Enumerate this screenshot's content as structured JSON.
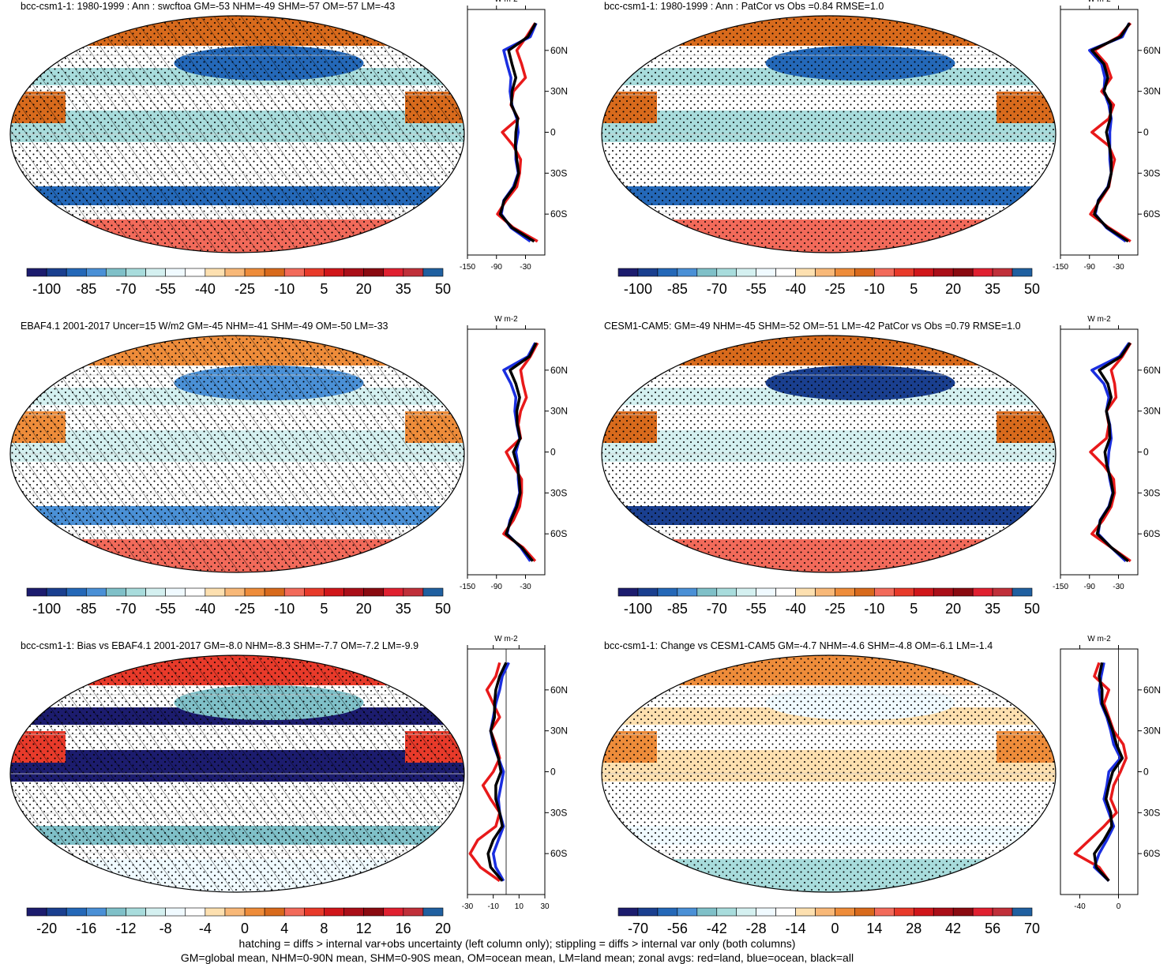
{
  "figure": {
    "footer_line1": "hatching = diffs > internal var+obs uncertainty (left column only); stippling = diffs > internal var only (both columns)",
    "footer_line2": "GM=global mean, NHM=0-90N mean, SHM=0-90S mean, OM=ocean mean, LM=land mean; zonal avgs: red=land, blue=ocean, black=all"
  },
  "colors": {
    "land": "#e8191a",
    "ocean": "#1a2ee0",
    "all": "#000000",
    "scale": [
      "#1c1c6e",
      "#1a3f8f",
      "#2468b8",
      "#4a90d6",
      "#7fc0c8",
      "#a8dcdc",
      "#d4f0f0",
      "#f0faff",
      "#ffffff",
      "#fde0b0",
      "#f8b878",
      "#ee8c3a",
      "#d86a1c",
      "#f26a5a",
      "#e83a2a",
      "#d0161a",
      "#aa0e18",
      "#8a0a10",
      "#e02030",
      "#c0303a",
      "#2060a0"
    ]
  },
  "chart_data": [
    {
      "type": "map",
      "id": "p1",
      "title": "bcc-csm1-1: 1980-1999 : Ann : swcftoa GM=-53 NHM=-49 SHM=-57 OM=-57 LM=-43",
      "colorbar_labels": [
        "-100",
        "-85",
        "-70",
        "-55",
        "-40",
        "-25",
        "-10",
        "5",
        "20",
        "35",
        "50"
      ],
      "zonal": {
        "unit_label": "W m-2",
        "xticks": [
          "-150",
          "-90",
          "-30"
        ],
        "xlim": [
          -150,
          10
        ],
        "yticks": [
          "60N",
          "30N",
          "0",
          "30S",
          "60S"
        ],
        "lats": [
          80,
          70,
          60,
          50,
          40,
          30,
          20,
          10,
          0,
          -10,
          -20,
          -30,
          -40,
          -50,
          -60,
          -70,
          -80
        ],
        "land": [
          -10,
          -28,
          -48,
          -38,
          -30,
          -55,
          -60,
          -45,
          -78,
          -55,
          -40,
          -42,
          -48,
          -70,
          -88,
          -55,
          -5
        ],
        "ocean": [
          -8,
          -20,
          -75,
          -68,
          -60,
          -62,
          -58,
          -48,
          -45,
          -50,
          -50,
          -45,
          -55,
          -75,
          -80,
          -60,
          -20
        ],
        "all": [
          -9,
          -25,
          -65,
          -58,
          -50,
          -58,
          -59,
          -46,
          -50,
          -51,
          -48,
          -44,
          -53,
          -74,
          -82,
          -58,
          -12
        ]
      }
    },
    {
      "type": "map",
      "id": "p2",
      "title": "bcc-csm1-1: 1980-1999 : Ann : PatCor vs Obs =0.84 RMSE=1.0",
      "colorbar_labels": [
        "-100",
        "-85",
        "-70",
        "-55",
        "-40",
        "-25",
        "-10",
        "5",
        "20",
        "35",
        "50"
      ],
      "zonal": {
        "unit_label": "W m-2",
        "xticks": [
          "-150",
          "-90",
          "-30"
        ],
        "xlim": [
          -150,
          10
        ],
        "yticks": [
          "60N",
          "30N",
          "0",
          "30S",
          "60S"
        ],
        "lats": [
          80,
          70,
          60,
          50,
          40,
          30,
          20,
          10,
          0,
          -10,
          -20,
          -30,
          -40,
          -50,
          -60,
          -70,
          -80
        ],
        "land": [
          -5,
          -30,
          -80,
          -55,
          -45,
          -65,
          -40,
          -50,
          -85,
          -50,
          -38,
          -45,
          -50,
          -68,
          -88,
          -50,
          -5
        ],
        "ocean": [
          -8,
          -22,
          -90,
          -65,
          -58,
          -60,
          -50,
          -45,
          -48,
          -48,
          -48,
          -45,
          -52,
          -72,
          -78,
          -55,
          -15
        ],
        "all": [
          -7,
          -26,
          -85,
          -60,
          -52,
          -60,
          -46,
          -47,
          -55,
          -49,
          -45,
          -45,
          -51,
          -71,
          -80,
          -53,
          -10
        ]
      }
    },
    {
      "type": "map",
      "id": "p3",
      "title": "EBAF4.1 2001-2017 Uncer=15 W/m2 GM=-45 NHM=-41 SHM=-49 OM=-50 LM=-33",
      "colorbar_labels": [
        "-100",
        "-85",
        "-70",
        "-55",
        "-40",
        "-25",
        "-10",
        "5",
        "20",
        "35",
        "50"
      ],
      "zonal": {
        "unit_label": "W m-2",
        "xticks": [
          "-150",
          "-90",
          "-30"
        ],
        "xlim": [
          -150,
          10
        ],
        "yticks": [
          "60N",
          "30N",
          "0",
          "30S",
          "60S"
        ],
        "lats": [
          80,
          70,
          60,
          50,
          40,
          30,
          20,
          10,
          0,
          -10,
          -20,
          -30,
          -40,
          -50,
          -60,
          -70,
          -80
        ],
        "land": [
          -5,
          -20,
          -40,
          -35,
          -28,
          -40,
          -45,
          -40,
          -70,
          -55,
          -38,
          -38,
          -42,
          -55,
          -75,
          -35,
          -10
        ],
        "ocean": [
          -10,
          -25,
          -75,
          -60,
          -50,
          -52,
          -48,
          -42,
          -50,
          -45,
          -45,
          -42,
          -50,
          -62,
          -68,
          -40,
          -20
        ],
        "all": [
          -8,
          -22,
          -62,
          -50,
          -42,
          -48,
          -47,
          -41,
          -55,
          -47,
          -43,
          -41,
          -48,
          -60,
          -70,
          -38,
          -15
        ]
      }
    },
    {
      "type": "map",
      "id": "p4",
      "title": "CESM1-CAM5: GM=-49 NHM=-45 SHM=-52 OM=-51 LM=-42 PatCor vs Obs =0.79 RMSE=1.0",
      "colorbar_labels": [
        "-100",
        "-85",
        "-70",
        "-55",
        "-40",
        "-25",
        "-10",
        "5",
        "20",
        "35",
        "50"
      ],
      "zonal": {
        "unit_label": "W m-2",
        "xticks": [
          "-150",
          "-90",
          "-30"
        ],
        "xlim": [
          -150,
          10
        ],
        "yticks": [
          "60N",
          "30N",
          "0",
          "30S",
          "60S"
        ],
        "lats": [
          80,
          70,
          60,
          50,
          40,
          30,
          20,
          10,
          0,
          -10,
          -20,
          -30,
          -40,
          -50,
          -60,
          -70,
          -80
        ],
        "land": [
          -5,
          -22,
          -45,
          -38,
          -35,
          -55,
          -50,
          -55,
          -88,
          -60,
          -40,
          -38,
          -45,
          -62,
          -85,
          -45,
          -5
        ],
        "ocean": [
          -8,
          -28,
          -85,
          -60,
          -50,
          -55,
          -48,
          -45,
          -50,
          -52,
          -48,
          -42,
          -50,
          -68,
          -72,
          -45,
          -15
        ],
        "all": [
          -6,
          -25,
          -70,
          -52,
          -45,
          -55,
          -49,
          -48,
          -58,
          -54,
          -46,
          -41,
          -49,
          -67,
          -74,
          -45,
          -10
        ]
      }
    },
    {
      "type": "map",
      "id": "p5",
      "title": "bcc-csm1-1: Bias vs EBAF4.1 2001-2017 GM=-8.0 NHM=-8.3 SHM=-7.7 OM=-7.2 LM=-9.9",
      "colorbar_labels": [
        "-20",
        "-16",
        "-12",
        "-8",
        "-4",
        "0",
        "4",
        "8",
        "12",
        "16",
        "20"
      ],
      "zonal": {
        "unit_label": "W m-2",
        "xticks": [
          "-30",
          "-10",
          "10",
          "30"
        ],
        "xlim": [
          -30,
          30
        ],
        "yticks": [
          "60N",
          "30N",
          "0",
          "30S",
          "60S"
        ],
        "lats": [
          80,
          70,
          60,
          50,
          40,
          30,
          20,
          10,
          0,
          -10,
          -20,
          -30,
          -40,
          -50,
          -60,
          -70,
          -80
        ],
        "land": [
          -5,
          -8,
          -15,
          -10,
          -5,
          -12,
          -8,
          -5,
          -10,
          -18,
          -12,
          -5,
          -8,
          -22,
          -28,
          -20,
          -5
        ],
        "ocean": [
          2,
          -3,
          -5,
          -8,
          -10,
          -12,
          -10,
          -6,
          -2,
          -4,
          -6,
          -5,
          -2,
          -6,
          -10,
          -8,
          -2
        ],
        "all": [
          0,
          -5,
          -8,
          -9,
          -9,
          -12,
          -9,
          -6,
          -4,
          -8,
          -8,
          -5,
          -3,
          -10,
          -14,
          -12,
          -3
        ]
      }
    },
    {
      "type": "map",
      "id": "p6",
      "title": "bcc-csm1-1: Change vs CESM1-CAM5 GM=-4.7 NHM=-4.6 SHM=-4.8 OM=-6.1 LM=-1.4",
      "colorbar_labels": [
        "-70",
        "-56",
        "-42",
        "-28",
        "-14",
        "0",
        "14",
        "28",
        "42",
        "56",
        "70"
      ],
      "zonal": {
        "unit_label": "W m-2",
        "xticks": [
          "-40",
          "0"
        ],
        "xlim": [
          -60,
          20
        ],
        "yticks": [
          "60N",
          "30N",
          "0",
          "30S",
          "60S"
        ],
        "lats": [
          80,
          70,
          60,
          50,
          40,
          30,
          20,
          10,
          0,
          -10,
          -20,
          -30,
          -40,
          -50,
          -60,
          -70,
          -80
        ],
        "land": [
          -20,
          -25,
          -10,
          -15,
          -10,
          -5,
          5,
          8,
          2,
          -5,
          -8,
          -2,
          -15,
          -30,
          -45,
          -20,
          -10
        ],
        "ocean": [
          -15,
          -18,
          -20,
          -18,
          -12,
          -8,
          -5,
          2,
          -10,
          -12,
          -15,
          -10,
          -5,
          -12,
          -20,
          -25,
          -10
        ],
        "all": [
          -17,
          -20,
          -17,
          -17,
          -11,
          -6,
          -2,
          4,
          -6,
          -10,
          -13,
          -8,
          -7,
          -15,
          -25,
          -23,
          -10
        ]
      }
    }
  ]
}
